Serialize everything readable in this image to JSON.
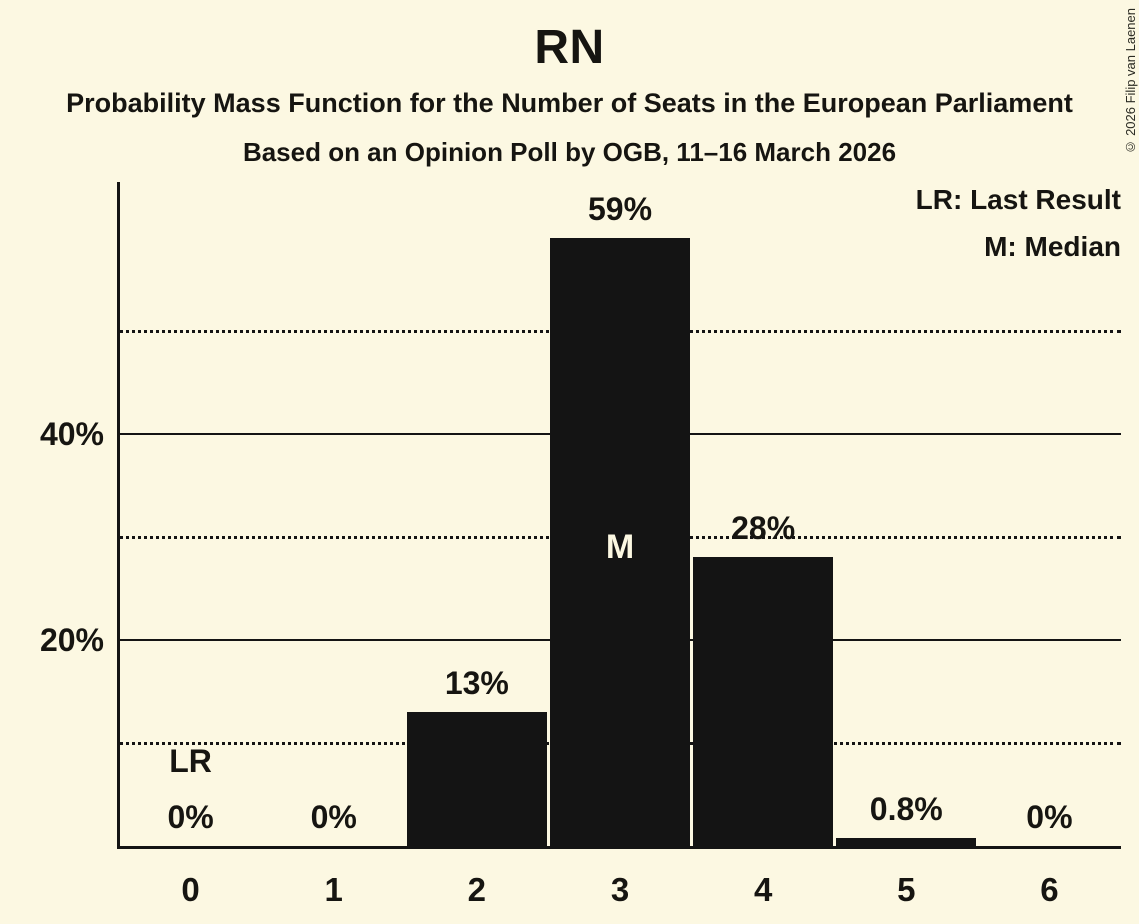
{
  "title": "RN",
  "subtitle": "Probability Mass Function for the Number of Seats in the European Parliament",
  "poll_line": "Based on an Opinion Poll by OGB, 11–16 March 2026",
  "legend": {
    "last_result": "LR: Last Result",
    "median": "M: Median"
  },
  "copyright": "© 2026 Filip van Laenen",
  "colors": {
    "background": "#fcf8e2",
    "bar": "#141414",
    "text": "#161511",
    "median_label_text": "#fcf8e2"
  },
  "chart_data": {
    "type": "bar",
    "title": "RN",
    "xlabel": "",
    "ylabel": "",
    "categories": [
      "0",
      "1",
      "2",
      "3",
      "4",
      "5",
      "6"
    ],
    "values": [
      0,
      0,
      13,
      59,
      28,
      0.8,
      0
    ],
    "bar_labels": [
      "0%",
      "0%",
      "13%",
      "59%",
      "28%",
      "0.8%",
      "0%"
    ],
    "ylim": [
      0,
      64
    ],
    "grid": "horizontal",
    "legend_position": "top-right",
    "y_axis": {
      "ticks": [
        {
          "label": "20%",
          "value": 20
        },
        {
          "label": "40%",
          "value": 40
        }
      ],
      "solid_gridlines": [
        20,
        40
      ],
      "dotted_gridlines": [
        10,
        30,
        50
      ]
    },
    "annotations": {
      "last_result_label": "LR",
      "last_result_category": "0",
      "median_label": "M",
      "median_category": "3"
    }
  }
}
